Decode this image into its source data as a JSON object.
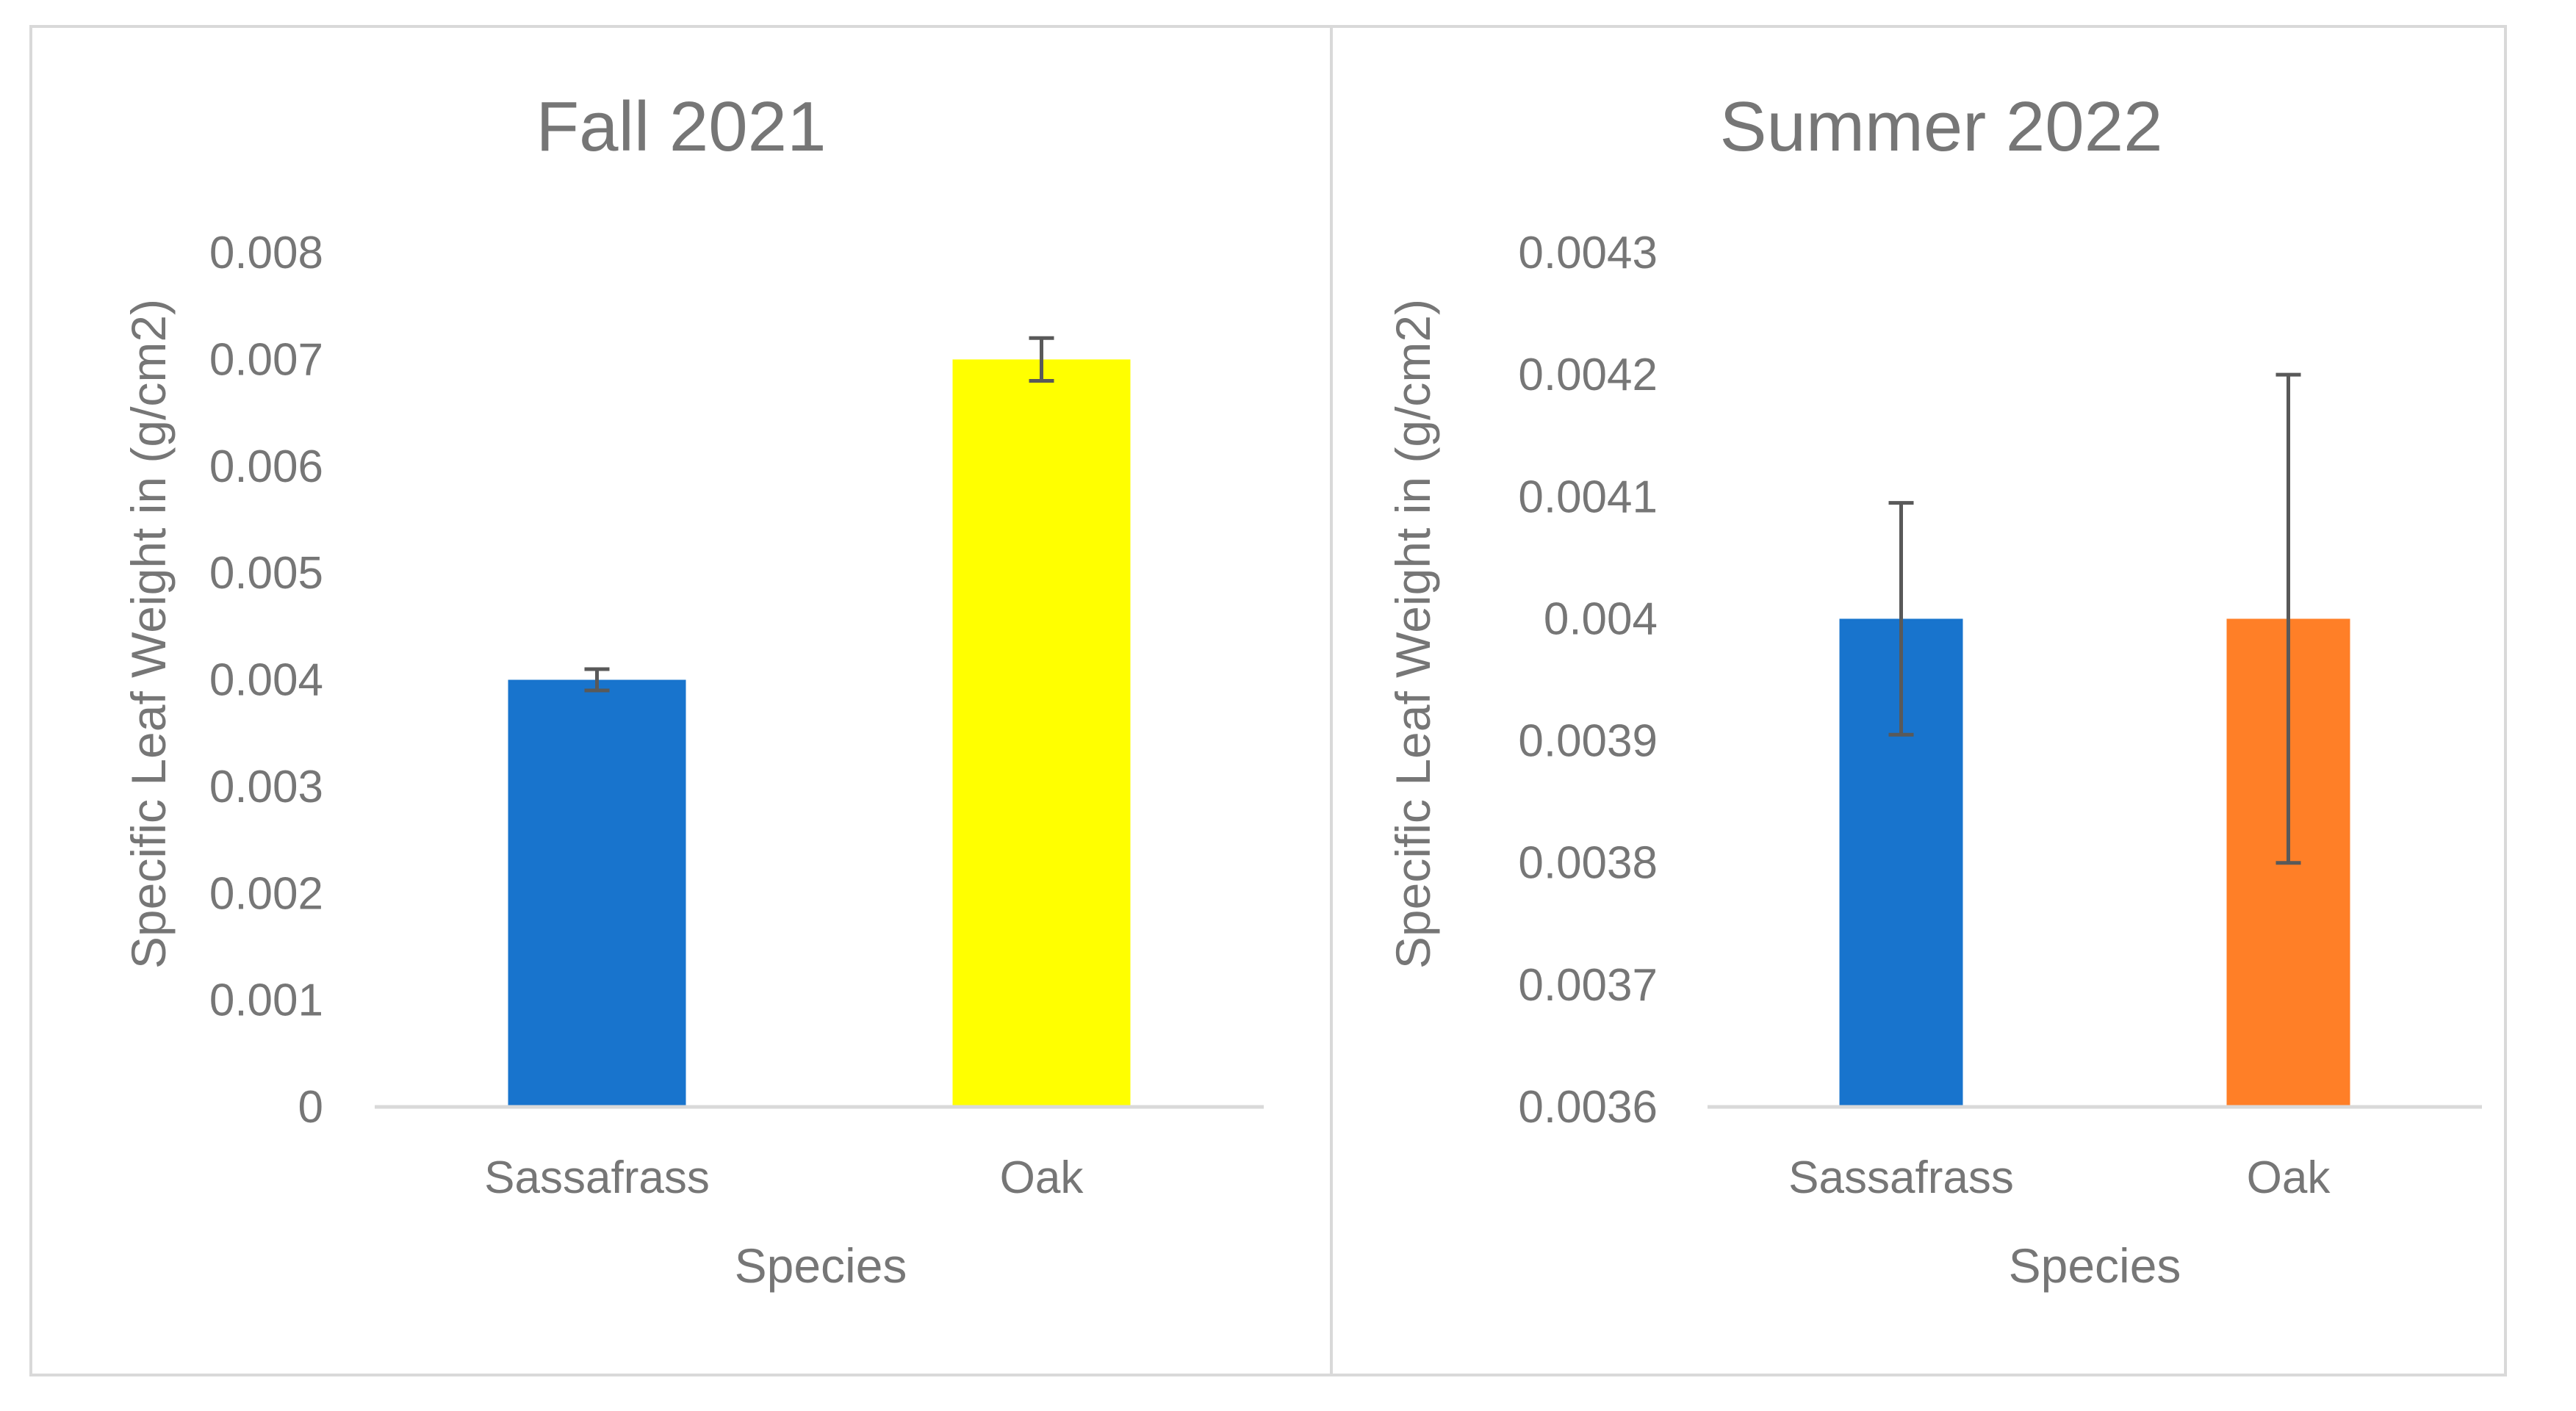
{
  "chart_data": [
    {
      "type": "bar",
      "title": "Fall 2021",
      "xlabel": "Species",
      "ylabel": "Specific Leaf Weight in (g/cm2)",
      "categories": [
        "Sassafrass",
        "Oak"
      ],
      "values": [
        0.004,
        0.007
      ],
      "error": [
        0.0001,
        0.0002
      ],
      "colors": [
        "#1874CD",
        "#FFFF00"
      ],
      "ylim": [
        0,
        0.008
      ],
      "yticks": [
        "0",
        "0.001",
        "0.002",
        "0.003",
        "0.004",
        "0.005",
        "0.006",
        "0.007",
        "0.008"
      ],
      "grid": false
    },
    {
      "type": "bar",
      "title": "Summer 2022",
      "xlabel": "Species",
      "ylabel": "Specific Leaf Weight in (g/cm2)",
      "categories": [
        "Sassafrass",
        "Oak"
      ],
      "values": [
        0.004,
        0.004
      ],
      "error": [
        9.5e-05,
        0.0002
      ],
      "colors": [
        "#1874CD",
        "#FF7F27"
      ],
      "ylim": [
        0.0036,
        0.0043
      ],
      "yticks": [
        "0.0036",
        "0.0037",
        "0.0038",
        "0.0039",
        "0.004",
        "0.0041",
        "0.0042",
        "0.0043"
      ],
      "grid": false
    }
  ]
}
